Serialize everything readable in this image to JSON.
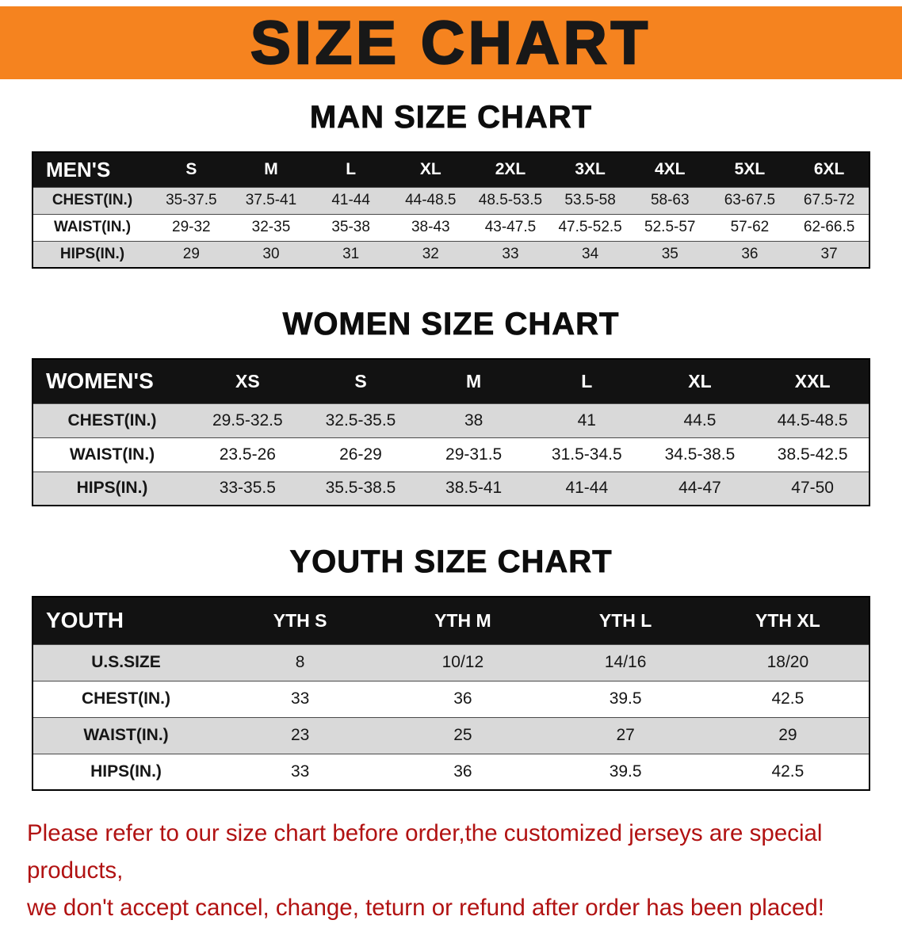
{
  "banner": {
    "title": "SIZE CHART"
  },
  "colors": {
    "banner_bg": "#F5831F",
    "header_bg": "#121212",
    "row_shaded": "#D9D9D9",
    "disclaimer": "#B11212"
  },
  "sections": [
    {
      "heading": "MAN SIZE CHART",
      "table": {
        "header": [
          "MEN'S",
          "S",
          "M",
          "L",
          "XL",
          "2XL",
          "3XL",
          "4XL",
          "5XL",
          "6XL"
        ],
        "rows": [
          [
            "CHEST(IN.)",
            "35-37.5",
            "37.5-41",
            "41-44",
            "44-48.5",
            "48.5-53.5",
            "53.5-58",
            "58-63",
            "63-67.5",
            "67.5-72"
          ],
          [
            "WAIST(IN.)",
            "29-32",
            "32-35",
            "35-38",
            "38-43",
            "43-47.5",
            "47.5-52.5",
            "52.5-57",
            "57-62",
            "62-66.5"
          ],
          [
            "HIPS(IN.)",
            "29",
            "30",
            "31",
            "32",
            "33",
            "34",
            "35",
            "36",
            "37"
          ]
        ]
      }
    },
    {
      "heading": "WOMEN SIZE CHART",
      "table": {
        "header": [
          "WOMEN'S",
          "XS",
          "S",
          "M",
          "L",
          "XL",
          "XXL"
        ],
        "rows": [
          [
            "CHEST(IN.)",
            "29.5-32.5",
            "32.5-35.5",
            "38",
            "41",
            "44.5",
            "44.5-48.5"
          ],
          [
            "WAIST(IN.)",
            "23.5-26",
            "26-29",
            "29-31.5",
            "31.5-34.5",
            "34.5-38.5",
            "38.5-42.5"
          ],
          [
            "HIPS(IN.)",
            "33-35.5",
            "35.5-38.5",
            "38.5-41",
            "41-44",
            "44-47",
            "47-50"
          ]
        ]
      }
    },
    {
      "heading": "YOUTH SIZE CHART",
      "table": {
        "header": [
          "YOUTH",
          "YTH S",
          "YTH M",
          "YTH L",
          "YTH XL"
        ],
        "rows": [
          [
            "U.S.SIZE",
            "8",
            "10/12",
            "14/16",
            "18/20"
          ],
          [
            "CHEST(IN.)",
            "33",
            "36",
            "39.5",
            "42.5"
          ],
          [
            "WAIST(IN.)",
            "23",
            "25",
            "27",
            "29"
          ],
          [
            "HIPS(IN.)",
            "33",
            "36",
            "39.5",
            "42.5"
          ]
        ]
      }
    }
  ],
  "disclaimer": {
    "line1": "Please refer to our size chart before order,the customized jerseys are special products,",
    "line2": "we don't accept cancel, change, teturn or refund after order has been placed!"
  }
}
